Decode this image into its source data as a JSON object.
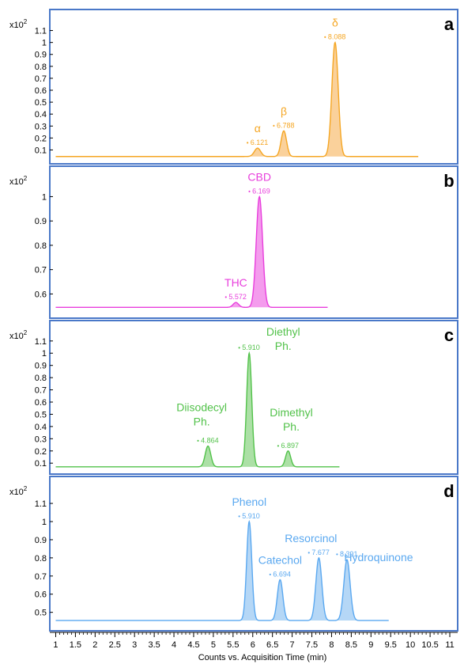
{
  "xaxis": {
    "label": "Counts vs. Acquisition Time (min)",
    "range": [
      0.85,
      11.2
    ],
    "ticks": [
      1,
      1.5,
      2,
      2.5,
      3,
      3.5,
      4,
      4.5,
      5,
      5.5,
      6,
      6.5,
      7,
      7.5,
      8,
      8.5,
      9,
      9.5,
      10,
      10.5,
      11
    ],
    "tick_labels": [
      "1",
      "1.5",
      "2",
      "2.5",
      "3",
      "3.5",
      "4",
      "4.5",
      "5",
      "5.5",
      "6",
      "6.5",
      "7",
      "7.5",
      "8",
      "8.5",
      "9",
      "9.5",
      "10",
      "10.5",
      "11"
    ]
  },
  "chart_data": [
    {
      "type": "area",
      "panel_label": "a",
      "scale_base": "x10",
      "scale_exp": "2",
      "color": "#F5A623",
      "fill": "#F9C98A",
      "ylim": [
        0.03,
        1.17
      ],
      "yticks": [
        0.1,
        0.2,
        0.3,
        0.4,
        0.5,
        0.6,
        0.7,
        0.8,
        0.9,
        1,
        1.1
      ],
      "ytick_labels": [
        "0.1",
        "0.2",
        "0.3",
        "0.4",
        "0.5",
        "0.6",
        "0.7",
        "0.8",
        "0.9",
        "1",
        "1.1"
      ],
      "baseline": 0.045,
      "x_end": 10.2,
      "peaks": [
        {
          "name": "α",
          "rt": 6.121,
          "rt_label": "6.121",
          "height": 0.115,
          "width": 0.08
        },
        {
          "name": "β",
          "rt": 6.788,
          "rt_label": "6.788",
          "height": 0.26,
          "width": 0.07
        },
        {
          "name": "δ",
          "rt": 8.088,
          "rt_label": "8.088",
          "height": 1.0,
          "width": 0.08
        }
      ]
    },
    {
      "type": "area",
      "panel_label": "b",
      "scale_base": "x10",
      "scale_exp": "2",
      "color": "#E83EDC",
      "fill": "#F28BEA",
      "ylim": [
        0.52,
        1.06
      ],
      "yticks": [
        0.6,
        0.7,
        0.8,
        0.9,
        1
      ],
      "ytick_labels": [
        "0.6",
        "0.7",
        "0.8",
        "0.9",
        "1"
      ],
      "baseline": 0.545,
      "x_end": 7.9,
      "peaks": [
        {
          "name": "THC",
          "rt": 5.572,
          "rt_label": "5.572",
          "height": 0.565,
          "width": 0.07
        },
        {
          "name": "CBD",
          "rt": 6.169,
          "rt_label": "6.169",
          "height": 1.0,
          "width": 0.08
        }
      ]
    },
    {
      "type": "area",
      "panel_label": "c",
      "scale_base": "x10",
      "scale_exp": "2",
      "color": "#52C24A",
      "fill": "#9EDB97",
      "ylim": [
        0.03,
        1.17
      ],
      "yticks": [
        0.1,
        0.2,
        0.3,
        0.4,
        0.5,
        0.6,
        0.7,
        0.8,
        0.9,
        1,
        1.1
      ],
      "ytick_labels": [
        "0.1",
        "0.2",
        "0.3",
        "0.4",
        "0.5",
        "0.6",
        "0.7",
        "0.8",
        "0.9",
        "1",
        "1.1"
      ],
      "baseline": 0.07,
      "x_end": 8.2,
      "peaks": [
        {
          "name": "Diisodecyl\nPh.",
          "rt": 4.864,
          "rt_label": "4.864",
          "height": 0.24,
          "width": 0.07
        },
        {
          "name": "Diethyl\nPh.",
          "rt": 5.91,
          "rt_label": "5.910",
          "height": 1.0,
          "width": 0.065
        },
        {
          "name": "Dimethyl\nPh.",
          "rt": 6.897,
          "rt_label": "6.897",
          "height": 0.2,
          "width": 0.065
        }
      ]
    },
    {
      "type": "area",
      "panel_label": "d",
      "scale_base": "x10",
      "scale_exp": "2",
      "color": "#5AA8F0",
      "fill": "#A8D0F5",
      "ylim": [
        0.42,
        1.17
      ],
      "yticks": [
        0.5,
        0.6,
        0.7,
        0.8,
        0.9,
        1,
        1.1
      ],
      "ytick_labels": [
        "0.5",
        "0.6",
        "0.7",
        "0.8",
        "0.9",
        "1",
        "1.1"
      ],
      "baseline": 0.455,
      "x_end": 9.45,
      "peaks": [
        {
          "name": "Phenol",
          "rt": 5.91,
          "rt_label": "5.910",
          "height": 1.0,
          "width": 0.065
        },
        {
          "name": "Catechol",
          "rt": 6.694,
          "rt_label": "6.694",
          "height": 0.68,
          "width": 0.07
        },
        {
          "name": "Resorcinol",
          "rt": 7.677,
          "rt_label": "7.677",
          "height": 0.8,
          "width": 0.075
        },
        {
          "name": "Hydroquinone",
          "rt": 8.391,
          "rt_label": "8.391",
          "height": 0.79,
          "width": 0.08
        }
      ]
    }
  ]
}
